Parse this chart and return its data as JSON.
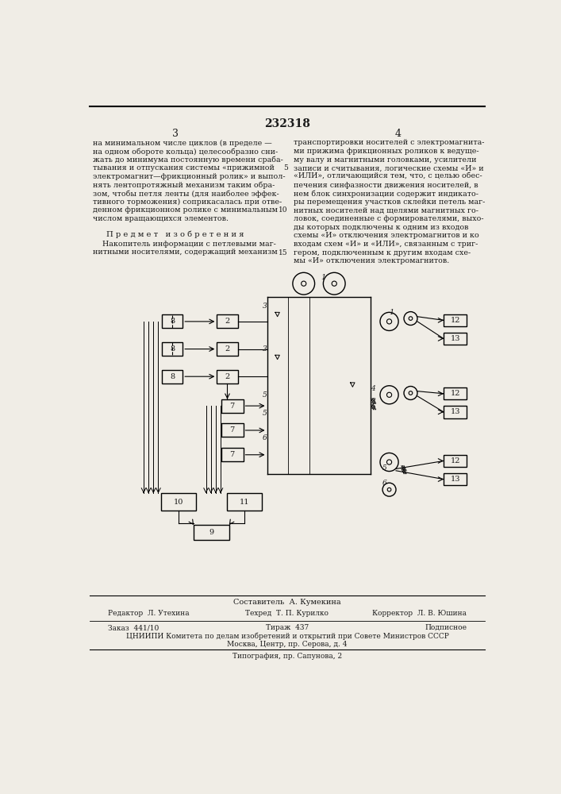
{
  "page_number": "232318",
  "col_left": "3",
  "col_right": "4",
  "bg_color": "#f0ede6",
  "text_color": "#1a1a1a",
  "line_color": "#000000",
  "top_text_left": "на минимальном числе циклов (в пределе —\nна одном обороте кольца) целесообразно сни-\nжать до минимума постоянную времени сраба-\nтывания и отпускания системы «прижимной\nэлектромагнит—фрикционный ролик» и выпол-\nнять лентопротяжный механизм таким обра-\nзом, чтобы петля ленты (для наиболее эффек-\nтивного торможения) соприкасалась при отве-\nденном фрикционном ролике с минимальным\nчислом вращающихся элементов.",
  "top_text_right": "транспортировки носителей с электромагнита-\nми прижима фрикционных роликов к ведуще-\nму валу и магнитными головками, усилители\nзаписи и считывания, логические схемы «И» и\n«ИЛИ», отличающийся тем, что, с целью обес-\nпечения синфазности движения носителей, в\nнем блок синхронизации содержит индикато-\nры перемещения участков склейки петель маг-\nнитных носителей над щелями магнитных го-\nловок, соединенные с формирователями, выхо-\nды которых подключены к одним из входов\nсхемы «И» отключения электромагнитов и ко\nвходам схем «И» и «ИЛИ», связанным с триг-\nгером, подключенным к другим входам схе-\nмы «И» отключения электромагнитов.",
  "subject_title": "П р е д м е т   и з о б р е т е н и я",
  "subject_text1": "    Накопитель информации с петлевыми маг-",
  "subject_text2": "нитными носителями, содержащий механизм",
  "line_num_5": "5",
  "line_num_10": "10",
  "line_num_15": "15",
  "composer_label": "Составитель  А. Кумекина",
  "editor_label": "Редактор  Л. Утехина",
  "tech_label": "Техред  Т. П. Курилко",
  "corrector_label": "Корректор  Л. В. Юшина",
  "order_label": "Заказ  441/10",
  "tirazh_label": "Тираж  437",
  "podpisnoe_label": "Подписное",
  "tsniip_label": "ЦНИИПИ Комитета по делам изобретений и открытий при Совете Министров СССР",
  "moscow_label": "Москва, Центр, пр. Серова, д. 4",
  "tipografia_label": "Типография, пр. Сапунова, 2"
}
